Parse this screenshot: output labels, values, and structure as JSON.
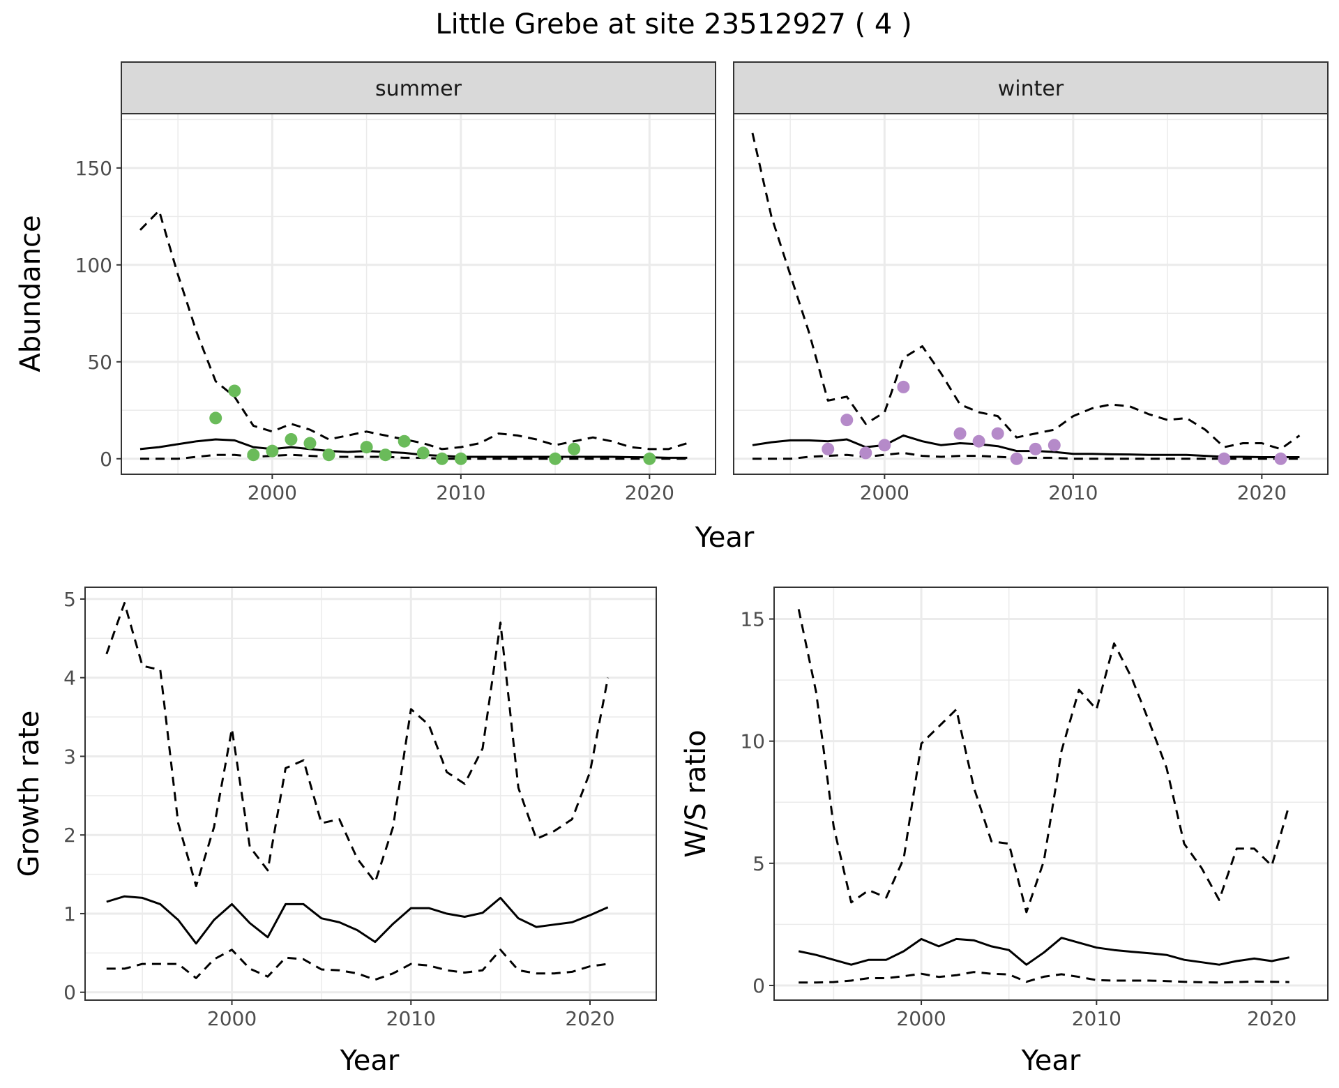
{
  "title": "Little Grebe at site 23512927 ( 4 )",
  "colors": {
    "summer_points": "#6abb5a",
    "winter_points": "#b58ac9",
    "lines": "#000000",
    "strip_bg": "#d9d9d9",
    "grid": "#ebebeb"
  },
  "chart_data": [
    {
      "type": "line",
      "panel": "abundance",
      "ylabel": "Abundance",
      "xlabel": "Year",
      "xlim": [
        1992,
        2023.5
      ],
      "ylim": [
        -8,
        178
      ],
      "x_ticks": [
        2000,
        2010,
        2020
      ],
      "y_ticks": [
        0,
        50,
        100,
        150
      ],
      "grid": true,
      "facets": [
        {
          "name": "summer",
          "mean": {
            "x": [
              1993,
              1994,
              1995,
              1996,
              1997,
              1998,
              1999,
              2000,
              2001,
              2002,
              2003,
              2004,
              2005,
              2006,
              2007,
              2008,
              2009,
              2010,
              2011,
              2012,
              2013,
              2014,
              2015,
              2016,
              2017,
              2018,
              2019,
              2020,
              2021,
              2022
            ],
            "y": [
              5,
              6,
              7.5,
              9,
              10,
              9.5,
              6,
              5,
              6,
              5,
              4,
              3.5,
              4,
              3.5,
              3,
              2,
              1.5,
              1,
              1,
              1,
              1,
              1,
              1,
              1,
              1,
              1,
              0.8,
              0.7,
              0.5,
              0.5
            ]
          },
          "upper": {
            "x": [
              1993,
              1994,
              1995,
              1996,
              1997,
              1998,
              1999,
              2000,
              2001,
              2002,
              2003,
              2004,
              2005,
              2006,
              2007,
              2008,
              2009,
              2010,
              2011,
              2012,
              2013,
              2014,
              2015,
              2016,
              2017,
              2018,
              2019,
              2020,
              2021,
              2022
            ],
            "y": [
              118,
              128,
              95,
              65,
              40,
              32,
              17,
              14,
              18,
              15,
              10,
              12,
              14,
              12,
              10,
              8,
              5,
              6,
              8,
              13,
              12,
              10,
              7,
              9,
              11,
              9,
              6,
              5,
              5,
              8
            ]
          },
          "lower": {
            "x": [
              1993,
              1994,
              1995,
              1996,
              1997,
              1998,
              1999,
              2000,
              2001,
              2002,
              2003,
              2004,
              2005,
              2006,
              2007,
              2008,
              2009,
              2010,
              2011,
              2012,
              2013,
              2014,
              2015,
              2016,
              2017,
              2018,
              2019,
              2020,
              2021,
              2022
            ],
            "y": [
              0,
              0,
              0,
              1,
              2,
              2,
              1,
              1.5,
              2,
              1.5,
              1,
              1,
              1,
              1,
              0.5,
              0.5,
              0,
              0,
              0,
              0,
              0,
              0,
              0,
              0,
              0,
              0,
              0,
              0,
              0,
              0
            ]
          },
          "points": {
            "x": [
              1997,
              1998,
              1999,
              2000,
              2001,
              2002,
              2003,
              2005,
              2006,
              2007,
              2008,
              2009,
              2010,
              2015,
              2016,
              2020
            ],
            "y": [
              21,
              35,
              2,
              4,
              10,
              8,
              2,
              6,
              2,
              9,
              3,
              0,
              0,
              0,
              5,
              0
            ]
          }
        },
        {
          "name": "winter",
          "mean": {
            "x": [
              1993,
              1994,
              1995,
              1996,
              1997,
              1998,
              1999,
              2000,
              2001,
              2002,
              2003,
              2004,
              2005,
              2006,
              2007,
              2008,
              2009,
              2010,
              2011,
              2012,
              2013,
              2014,
              2015,
              2016,
              2017,
              2018,
              2019,
              2020,
              2021,
              2022
            ],
            "y": [
              7,
              8.5,
              9.5,
              9.5,
              9,
              10,
              6,
              7,
              12,
              9,
              7,
              8,
              7.5,
              6.5,
              4,
              4,
              3.5,
              2.5,
              2.5,
              2.3,
              2.2,
              2,
              2,
              2,
              1.5,
              1,
              1,
              0.8,
              0.8,
              0.8
            ]
          },
          "upper": {
            "x": [
              1993,
              1994,
              1995,
              1996,
              1997,
              1998,
              1999,
              2000,
              2001,
              2002,
              2003,
              2004,
              2005,
              2006,
              2007,
              2008,
              2009,
              2010,
              2011,
              2012,
              2013,
              2014,
              2015,
              2016,
              2017,
              2018,
              2019,
              2020,
              2021,
              2022
            ],
            "y": [
              168,
              125,
              95,
              65,
              30,
              32,
              18,
              24,
              52,
              58,
              44,
              28,
              24,
              22,
              11,
              13,
              15,
              22,
              26,
              28,
              27,
              23,
              20,
              21,
              15,
              6,
              8,
              8,
              5,
              12
            ]
          },
          "lower": {
            "x": [
              1993,
              1994,
              1995,
              1996,
              1997,
              1998,
              1999,
              2000,
              2001,
              2002,
              2003,
              2004,
              2005,
              2006,
              2007,
              2008,
              2009,
              2010,
              2011,
              2012,
              2013,
              2014,
              2015,
              2016,
              2017,
              2018,
              2019,
              2020,
              2021,
              2022
            ],
            "y": [
              0,
              0,
              0,
              1,
              1.5,
              2,
              1,
              2,
              3,
              1.5,
              1,
              1.5,
              1.5,
              1,
              0.5,
              0.5,
              0.5,
              0,
              0,
              0,
              0,
              0,
              0,
              0,
              0,
              0,
              0,
              0,
              0,
              0
            ]
          },
          "points": {
            "x": [
              1997,
              1998,
              1999,
              2000,
              2001,
              2004,
              2005,
              2006,
              2007,
              2008,
              2009,
              2018,
              2021
            ],
            "y": [
              5,
              20,
              3,
              7,
              37,
              13,
              9,
              13,
              0,
              5,
              7,
              0,
              0
            ]
          }
        }
      ]
    },
    {
      "type": "line",
      "panel": "growth",
      "ylabel": "Growth rate",
      "xlabel": "Year",
      "xlim": [
        1991.8,
        2023.7
      ],
      "ylim": [
        -0.1,
        5.15
      ],
      "x_ticks": [
        2000,
        2010,
        2020
      ],
      "y_ticks": [
        0,
        1,
        2,
        3,
        4,
        5
      ],
      "grid": true,
      "mean": {
        "x": [
          1993,
          1994,
          1995,
          1996,
          1997,
          1998,
          1999,
          2000,
          2001,
          2002,
          2003,
          2004,
          2005,
          2006,
          2007,
          2008,
          2009,
          2010,
          2011,
          2012,
          2013,
          2014,
          2015,
          2016,
          2017,
          2018,
          2019,
          2020,
          2021
        ],
        "y": [
          1.15,
          1.22,
          1.2,
          1.12,
          0.92,
          0.62,
          0.92,
          1.12,
          0.88,
          0.7,
          1.12,
          1.12,
          0.94,
          0.89,
          0.79,
          0.64,
          0.87,
          1.07,
          1.07,
          1.0,
          0.96,
          1.01,
          1.2,
          0.94,
          0.83,
          0.86,
          0.89,
          0.98,
          1.08
        ]
      },
      "upper": {
        "x": [
          1993,
          1994,
          1995,
          1996,
          1997,
          1998,
          1999,
          2000,
          2001,
          2002,
          2003,
          2004,
          2005,
          2006,
          2007,
          2008,
          2009,
          2010,
          2011,
          2012,
          2013,
          2014,
          2015,
          2016,
          2017,
          2018,
          2019,
          2020,
          2021
        ],
        "y": [
          4.3,
          4.95,
          4.15,
          4.1,
          2.15,
          1.35,
          2.1,
          3.35,
          1.85,
          1.55,
          2.85,
          2.95,
          2.15,
          2.2,
          1.7,
          1.4,
          2.1,
          3.6,
          3.4,
          2.8,
          2.65,
          3.1,
          4.7,
          2.6,
          1.95,
          2.05,
          2.2,
          2.8,
          4.0
        ]
      },
      "lower": {
        "x": [
          1993,
          1994,
          1995,
          1996,
          1997,
          1998,
          1999,
          2000,
          2001,
          2002,
          2003,
          2004,
          2005,
          2006,
          2007,
          2008,
          2009,
          2010,
          2011,
          2012,
          2013,
          2014,
          2015,
          2016,
          2017,
          2018,
          2019,
          2020,
          2021
        ],
        "y": [
          0.3,
          0.3,
          0.36,
          0.36,
          0.36,
          0.18,
          0.42,
          0.54,
          0.3,
          0.2,
          0.44,
          0.42,
          0.29,
          0.28,
          0.24,
          0.16,
          0.24,
          0.36,
          0.34,
          0.28,
          0.25,
          0.28,
          0.54,
          0.28,
          0.24,
          0.24,
          0.26,
          0.33,
          0.36
        ]
      }
    },
    {
      "type": "line",
      "panel": "ratio",
      "ylabel": "W/S ratio",
      "xlabel": "Year",
      "xlim": [
        1991.6,
        2023.2
      ],
      "ylim": [
        -0.6,
        16.3
      ],
      "x_ticks": [
        2000,
        2010,
        2020
      ],
      "y_ticks": [
        0,
        5,
        10,
        15
      ],
      "grid": true,
      "mean": {
        "x": [
          1993,
          1994,
          1995,
          1996,
          1997,
          1998,
          1999,
          2000,
          2001,
          2002,
          2003,
          2004,
          2005,
          2006,
          2007,
          2008,
          2009,
          2010,
          2011,
          2012,
          2013,
          2014,
          2015,
          2016,
          2017,
          2018,
          2019,
          2020,
          2021
        ],
        "y": [
          1.4,
          1.25,
          1.05,
          0.85,
          1.05,
          1.05,
          1.4,
          1.9,
          1.6,
          1.9,
          1.85,
          1.6,
          1.45,
          0.85,
          1.35,
          1.95,
          1.75,
          1.55,
          1.45,
          1.38,
          1.32,
          1.25,
          1.05,
          0.95,
          0.85,
          1.0,
          1.1,
          1.0,
          1.15
        ]
      },
      "upper": {
        "x": [
          1993,
          1994,
          1995,
          1996,
          1997,
          1998,
          1999,
          2000,
          2001,
          2002,
          2003,
          2004,
          2005,
          2006,
          2007,
          2008,
          2009,
          2010,
          2011,
          2012,
          2013,
          2014,
          2015,
          2016,
          2017,
          2018,
          2019,
          2020,
          2021
        ],
        "y": [
          15.4,
          12.0,
          6.5,
          3.4,
          3.9,
          3.6,
          5.2,
          9.9,
          10.6,
          11.3,
          8.1,
          5.9,
          5.8,
          3.0,
          5.1,
          9.6,
          12.1,
          11.3,
          14.0,
          12.6,
          10.8,
          8.9,
          5.8,
          4.8,
          3.5,
          5.6,
          5.6,
          4.9,
          7.4
        ]
      },
      "lower": {
        "x": [
          1993,
          1994,
          1995,
          1996,
          1997,
          1998,
          1999,
          2000,
          2001,
          2002,
          2003,
          2004,
          2005,
          2006,
          2007,
          2008,
          2009,
          2010,
          2011,
          2012,
          2013,
          2014,
          2015,
          2016,
          2017,
          2018,
          2019,
          2020,
          2021
        ],
        "y": [
          0.12,
          0.12,
          0.14,
          0.2,
          0.3,
          0.3,
          0.38,
          0.48,
          0.35,
          0.42,
          0.55,
          0.48,
          0.45,
          0.15,
          0.36,
          0.46,
          0.35,
          0.22,
          0.2,
          0.2,
          0.2,
          0.18,
          0.15,
          0.13,
          0.12,
          0.14,
          0.16,
          0.15,
          0.14
        ]
      }
    }
  ]
}
